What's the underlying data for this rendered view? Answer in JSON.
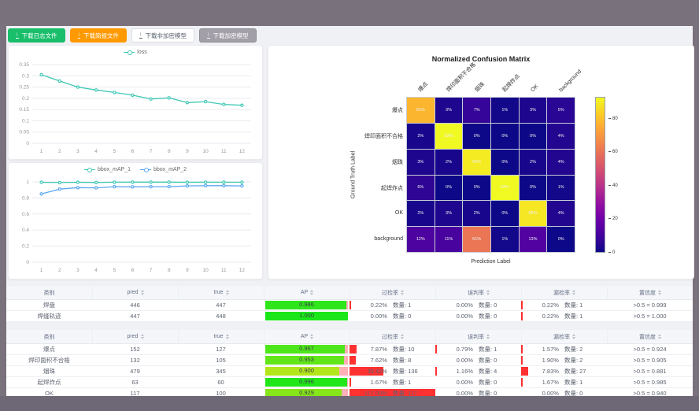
{
  "toolbar": {
    "buttons": [
      {
        "label": "下载日志文件",
        "bg": "#19be6b",
        "color": "#ffffff",
        "border": "#19be6b"
      },
      {
        "label": "下载简报文件",
        "bg": "#ff9900",
        "color": "#ffffff",
        "border": "#ff9900"
      },
      {
        "label": "下载非加密模型",
        "bg": "#ffffff",
        "color": "#59616e",
        "border": "#dcdee2"
      },
      {
        "label": "下载加密模型",
        "bg": "#a29fa8",
        "color": "#ffffff",
        "border": "#8f8c96"
      }
    ]
  },
  "chart_data": [
    {
      "type": "line",
      "name": "loss-chart",
      "x": [
        1,
        2,
        3,
        4,
        5,
        6,
        7,
        8,
        9,
        10,
        11,
        12
      ],
      "series": [
        {
          "name": "loss",
          "color": "#3fc8b4",
          "values": [
            0.305,
            0.277,
            0.25,
            0.237,
            0.226,
            0.214,
            0.197,
            0.202,
            0.181,
            0.185,
            0.173,
            0.169
          ]
        }
      ],
      "ylim": [
        0,
        0.35
      ],
      "y_ticks": [
        0,
        0.05,
        0.1,
        0.15,
        0.2,
        0.25,
        0.3,
        0.35
      ],
      "y_tick_labels": [
        "0",
        "0.05",
        "0.1",
        "0.15",
        "0.2",
        "0.25",
        "0.3",
        "0.35"
      ],
      "legend_position": "top",
      "grid": true
    },
    {
      "type": "line",
      "name": "map-chart",
      "x": [
        1,
        2,
        3,
        4,
        5,
        6,
        7,
        8,
        9,
        10,
        11,
        12
      ],
      "series": [
        {
          "name": "bbox_mAP_1",
          "color": "#3fc8b4",
          "values": [
            0.995,
            0.991,
            0.995,
            0.992,
            0.996,
            0.997,
            0.997,
            0.997,
            0.995,
            0.996,
            0.996,
            0.995
          ]
        },
        {
          "name": "bbox_mAP_2",
          "color": "#5ba7f0",
          "values": [
            0.85,
            0.91,
            0.928,
            0.925,
            0.94,
            0.938,
            0.94,
            0.94,
            0.95,
            0.953,
            0.953,
            0.95
          ]
        }
      ],
      "ylim": [
        0,
        1
      ],
      "y_ticks": [
        0,
        0.2,
        0.4,
        0.6,
        0.8,
        1
      ],
      "y_tick_labels": [
        "0",
        "0.2",
        "0.4",
        "0.6",
        "0.8",
        "1"
      ],
      "legend_position": "top",
      "grid": true
    },
    {
      "type": "heatmap",
      "title": "Normalized Confusion Matrix",
      "xlabel": "Prediction Label",
      "ylabel": "Ground Truth Label",
      "labels": [
        "爆点",
        "焊印面积不合格",
        "烟珠",
        "起焊炸点",
        "OK",
        "background"
      ],
      "matrix": [
        [
          81,
          3,
          7,
          1,
          3,
          5
        ],
        [
          2,
          93,
          0,
          0,
          0,
          4
        ],
        [
          3,
          2,
          90,
          0,
          2,
          4
        ],
        [
          6,
          0,
          0,
          93,
          0,
          1
        ],
        [
          2,
          3,
          2,
          0,
          89,
          4
        ],
        [
          12,
          11,
          61,
          1,
          13,
          0
        ]
      ],
      "cell_unit": "%",
      "cell_colors": [
        [
          "#fcb52f",
          "#1e078e",
          "#340598",
          "#130889",
          "#1e078e",
          "#290693"
        ],
        [
          "#18078c",
          "#f0f921",
          "#0d0887",
          "#0d0887",
          "#0d0887",
          "#230690"
        ],
        [
          "#1e078e",
          "#18078c",
          "#f4eb22",
          "#0d0887",
          "#18078c",
          "#230690"
        ],
        [
          "#2f0595",
          "#0d0887",
          "#0d0887",
          "#f0f921",
          "#0d0887",
          "#130889"
        ],
        [
          "#18078c",
          "#1e078e",
          "#18078c",
          "#0d0887",
          "#f5e723",
          "#230690"
        ],
        [
          "#4d03a0",
          "#48039f",
          "#ea7655",
          "#130889",
          "#5102a1",
          "#0d0887"
        ]
      ],
      "colorbar_ticks": [
        0,
        20,
        40,
        60,
        80
      ],
      "vmax": 93
    }
  ],
  "tables": {
    "headers": {
      "cat": "类别",
      "pred": "pred",
      "true": "true",
      "ap": "AP",
      "over": "过检率",
      "mis": "误判率",
      "miss": "漏检率",
      "conf": "置信度"
    },
    "ap_track": "#ffafb6",
    "bar_color": "#ff3131",
    "t1_rows": [
      {
        "cat": "焊盘",
        "pred": "446",
        "true": "447",
        "ap": "0.986",
        "ap_fill": 98.6,
        "ap_color": "#2ee61a",
        "over": {
          "pct": "0.22%",
          "count": "数量: 1",
          "bar": 0.22
        },
        "mis": {
          "pct": "0.00%",
          "count": "数量: 0",
          "bar": 0
        },
        "miss": {
          "pct": "0.22%",
          "count": "数量: 1",
          "bar": 0.22
        },
        "conf": ">0.5 = 0.999"
      },
      {
        "cat": "焊缝轨迹",
        "pred": "447",
        "true": "448",
        "ap": "1.000",
        "ap_fill": 100,
        "ap_color": "#1ae61a",
        "over": {
          "pct": "0.00%",
          "count": "数量: 0",
          "bar": 0
        },
        "mis": {
          "pct": "0.00%",
          "count": "数量: 0",
          "bar": 0
        },
        "miss": {
          "pct": "0.22%",
          "count": "数量: 1",
          "bar": 0.22
        },
        "conf": ">0.5 = 1.000"
      }
    ],
    "t2_rows": [
      {
        "cat": "爆点",
        "pred": "152",
        "true": "127",
        "ap": "0.967",
        "ap_fill": 96.7,
        "ap_color": "#4de61a",
        "over": {
          "pct": "7.87%",
          "count": "数量: 10",
          "bar": 7.87
        },
        "mis": {
          "pct": "0.79%",
          "count": "数量: 1",
          "bar": 0.79
        },
        "miss": {
          "pct": "1.57%",
          "count": "数量: 2",
          "bar": 1.57
        },
        "conf": ">0.5 = 0.924"
      },
      {
        "cat": "焊印面积不合格",
        "pred": "132",
        "true": "105",
        "ap": "0.953",
        "ap_fill": 95.3,
        "ap_color": "#61e61a",
        "over": {
          "pct": "7.62%",
          "count": "数量: 8",
          "bar": 7.62
        },
        "mis": {
          "pct": "0.00%",
          "count": "数量: 0",
          "bar": 0
        },
        "miss": {
          "pct": "1.90%",
          "count": "数量: 2",
          "bar": 1.9
        },
        "conf": ">0.5 = 0.905"
      },
      {
        "cat": "烟珠",
        "pred": "479",
        "true": "345",
        "ap": "0.900",
        "ap_fill": 90,
        "ap_color": "#b3e61a",
        "over": {
          "pct": "39.42%",
          "count": "数量: 136",
          "bar": 39.42
        },
        "mis": {
          "pct": "1.16%",
          "count": "数量: 4",
          "bar": 1.16
        },
        "miss": {
          "pct": "7.83%",
          "count": "数量: 27",
          "bar": 7.83
        },
        "conf": ">0.5 = 0.881"
      },
      {
        "cat": "起焊炸点",
        "pred": "63",
        "true": "60",
        "ap": "0.996",
        "ap_fill": 99.6,
        "ap_color": "#20e61a",
        "over": {
          "pct": "1.67%",
          "count": "数量: 1",
          "bar": 1.67
        },
        "mis": {
          "pct": "0.00%",
          "count": "数量: 0",
          "bar": 0
        },
        "miss": {
          "pct": "1.67%",
          "count": "数量: 1",
          "bar": 1.67
        },
        "conf": ">0.5 = 0.985"
      },
      {
        "cat": "OK",
        "pred": "117",
        "true": "100",
        "ap": "0.929",
        "ap_fill": 92.9,
        "ap_color": "#86e61a",
        "over": {
          "pct": "117.00%",
          "count": "数量: 117",
          "bar": 117
        },
        "mis": {
          "pct": "0.00%",
          "count": "数量: 0",
          "bar": 0
        },
        "miss": {
          "pct": "0.00%",
          "count": "数量: 0",
          "bar": 0
        },
        "conf": ">0.5 = 0.940"
      }
    ]
  }
}
